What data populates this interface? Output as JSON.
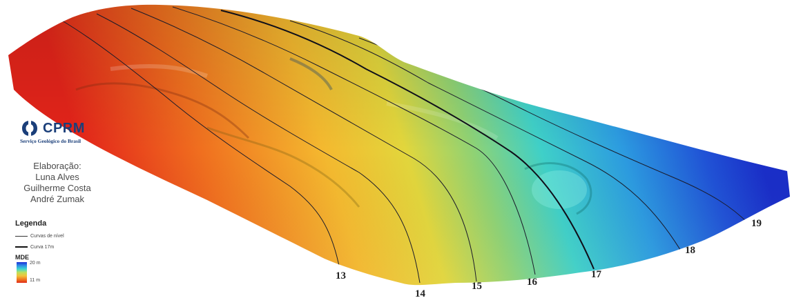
{
  "logo": {
    "name": "CPRM",
    "subtitle": "Serviço Geológico do Brasil",
    "brand_color": "#1b3f7a"
  },
  "credits": {
    "heading": "Elaboração:",
    "authors": [
      "Luna Alves",
      "Guilherme Costa",
      "André Zumak"
    ]
  },
  "legend": {
    "title": "Legenda",
    "items": [
      {
        "label": "Curvas de nível",
        "style": "thin-line"
      },
      {
        "label": "Curva 17m",
        "style": "thick-line"
      }
    ],
    "mde_title": "MDE",
    "mde_max": "20 m",
    "mde_min": "11 m",
    "ramp_colors": [
      "#1d2fd6",
      "#2f8fe6",
      "#3ed7d0",
      "#bfe05a",
      "#f2c23a",
      "#f07a22",
      "#e02a17"
    ]
  },
  "map": {
    "contour_labels": [
      "13",
      "14",
      "15",
      "16",
      "17",
      "18",
      "19"
    ],
    "highlighted_contour": "17"
  }
}
